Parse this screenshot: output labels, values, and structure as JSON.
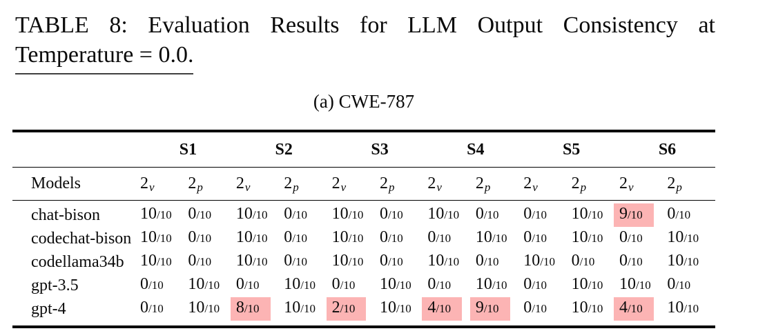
{
  "caption": {
    "line1": "TABLE 8: Evaluation Results for LLM Output Consistency at",
    "line2": "Temperature = 0.0."
  },
  "subcaption": "(a) CWE-787",
  "colors": {
    "highlight": "#FCB4B4",
    "rule": "#000000",
    "text": "#0A0A0A"
  },
  "table": {
    "models_header": "Models",
    "groups": [
      "S1",
      "S2",
      "S3",
      "S4",
      "S5",
      "S6"
    ],
    "subcol_base": "2",
    "subcols": [
      "v",
      "p"
    ],
    "denominator": "/10",
    "rows": [
      {
        "model": "chat-bison",
        "values": [
          "10",
          "0",
          "10",
          "0",
          "10",
          "0",
          "10",
          "0",
          "0",
          "10",
          "9",
          "0"
        ],
        "highlighted": [
          10
        ]
      },
      {
        "model": "codechat-bison",
        "values": [
          "10",
          "0",
          "10",
          "0",
          "10",
          "0",
          "0",
          "10",
          "0",
          "10",
          "0",
          "10"
        ],
        "highlighted": []
      },
      {
        "model": "codellama34b",
        "values": [
          "10",
          "0",
          "10",
          "0",
          "10",
          "0",
          "10",
          "0",
          "10",
          "0",
          "0",
          "10"
        ],
        "highlighted": []
      },
      {
        "model": "gpt-3.5",
        "values": [
          "0",
          "10",
          "0",
          "10",
          "0",
          "10",
          "0",
          "10",
          "0",
          "10",
          "10",
          "0"
        ],
        "highlighted": []
      },
      {
        "model": "gpt-4",
        "values": [
          "0",
          "10",
          "8",
          "10",
          "2",
          "10",
          "4",
          "9",
          "0",
          "10",
          "4",
          "10"
        ],
        "highlighted": [
          2,
          4,
          6,
          7,
          10
        ]
      }
    ]
  }
}
